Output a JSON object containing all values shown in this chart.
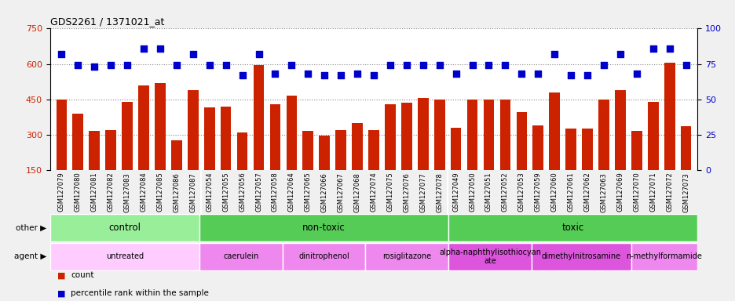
{
  "title": "GDS2261 / 1371021_at",
  "samples": [
    "GSM127079",
    "GSM127080",
    "GSM127081",
    "GSM127082",
    "GSM127083",
    "GSM127084",
    "GSM127085",
    "GSM127086",
    "GSM127087",
    "GSM127054",
    "GSM127055",
    "GSM127056",
    "GSM127057",
    "GSM127058",
    "GSM127064",
    "GSM127065",
    "GSM127066",
    "GSM127067",
    "GSM127068",
    "GSM127074",
    "GSM127075",
    "GSM127076",
    "GSM127077",
    "GSM127078",
    "GSM127049",
    "GSM127050",
    "GSM127051",
    "GSM127052",
    "GSM127053",
    "GSM127059",
    "GSM127060",
    "GSM127061",
    "GSM127062",
    "GSM127063",
    "GSM127069",
    "GSM127070",
    "GSM127071",
    "GSM127072",
    "GSM127073"
  ],
  "counts": [
    450,
    390,
    315,
    320,
    440,
    510,
    520,
    275,
    490,
    415,
    420,
    310,
    595,
    430,
    465,
    315,
    295,
    320,
    350,
    320,
    430,
    435,
    455,
    450,
    330,
    450,
    450,
    450,
    395,
    340,
    480,
    325,
    325,
    450,
    490,
    315,
    440,
    605,
    335
  ],
  "percentiles": [
    82,
    74,
    73,
    74,
    74,
    86,
    86,
    74,
    82,
    74,
    74,
    67,
    82,
    68,
    74,
    68,
    67,
    67,
    68,
    67,
    74,
    74,
    74,
    74,
    68,
    74,
    74,
    74,
    68,
    68,
    82,
    67,
    67,
    74,
    82,
    68,
    86,
    86,
    74
  ],
  "ylim_left": [
    150,
    750
  ],
  "yticks_left": [
    150,
    300,
    450,
    600,
    750
  ],
  "ylim_right": [
    0,
    100
  ],
  "yticks_right": [
    0,
    25,
    50,
    75,
    100
  ],
  "bar_color": "#cc2200",
  "dot_color": "#0000cc",
  "other_groups": [
    {
      "label": "control",
      "start": 0,
      "end": 9,
      "color": "#99ee99"
    },
    {
      "label": "non-toxic",
      "start": 9,
      "end": 24,
      "color": "#55cc55"
    },
    {
      "label": "toxic",
      "start": 24,
      "end": 39,
      "color": "#55cc55"
    }
  ],
  "agent_groups": [
    {
      "label": "untreated",
      "start": 0,
      "end": 9,
      "color": "#ffccff"
    },
    {
      "label": "caerulein",
      "start": 9,
      "end": 14,
      "color": "#ee88ee"
    },
    {
      "label": "dinitrophenol",
      "start": 14,
      "end": 19,
      "color": "#ee88ee"
    },
    {
      "label": "rosiglitazone",
      "start": 19,
      "end": 24,
      "color": "#ee88ee"
    },
    {
      "label": "alpha-naphthylisothiocyan\nate",
      "start": 24,
      "end": 29,
      "color": "#dd55dd"
    },
    {
      "label": "dimethylnitrosamine",
      "start": 29,
      "end": 35,
      "color": "#dd55dd"
    },
    {
      "label": "n-methylformamide",
      "start": 35,
      "end": 39,
      "color": "#ee88ee"
    }
  ],
  "legend_items": [
    {
      "label": "count",
      "color": "#cc2200"
    },
    {
      "label": "percentile rank within the sample",
      "color": "#0000cc"
    }
  ],
  "bg_color": "#f0f0f0",
  "plot_bg": "#ffffff",
  "xtick_bg": "#d0d0d0",
  "grid_color": "#888888"
}
